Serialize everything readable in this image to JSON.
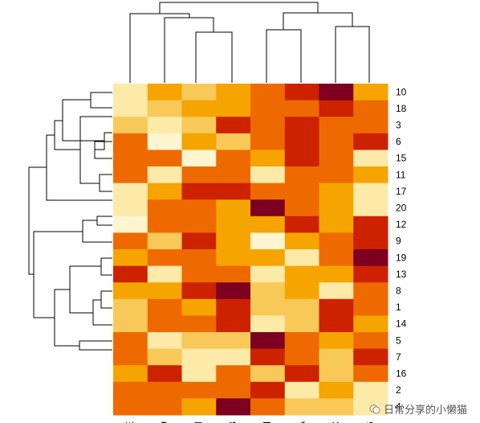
{
  "chart_data": {
    "type": "heatmap",
    "rows": [
      "10",
      "18",
      "3",
      "6",
      "15",
      "11",
      "17",
      "20",
      "12",
      "9",
      "19",
      "13",
      "8",
      "1",
      "14",
      "5",
      "7",
      "16",
      "2",
      "4"
    ],
    "columns": [
      "E",
      "D",
      "I",
      "B",
      "H",
      "A",
      "C",
      "G"
    ],
    "values": [
      [
        1,
        3,
        2,
        3,
        4,
        5,
        6,
        3
      ],
      [
        1,
        2,
        3,
        3,
        4,
        4,
        5,
        4
      ],
      [
        2,
        1,
        2,
        5,
        4,
        5,
        4,
        4
      ],
      [
        4,
        0,
        3,
        2,
        4,
        5,
        4,
        5
      ],
      [
        4,
        4,
        0,
        4,
        3,
        5,
        4,
        1
      ],
      [
        4,
        1,
        4,
        4,
        1,
        4,
        4,
        3
      ],
      [
        1,
        3,
        5,
        5,
        4,
        4,
        3,
        1
      ],
      [
        1,
        4,
        4,
        3,
        6,
        4,
        3,
        1
      ],
      [
        0,
        4,
        4,
        3,
        3,
        5,
        3,
        5
      ],
      [
        4,
        2,
        5,
        3,
        0,
        3,
        4,
        5
      ],
      [
        3,
        4,
        4,
        3,
        3,
        1,
        4,
        6
      ],
      [
        5,
        1,
        4,
        4,
        1,
        3,
        3,
        5
      ],
      [
        3,
        3,
        5,
        6,
        2,
        3,
        1,
        4
      ],
      [
        2,
        4,
        3,
        5,
        2,
        2,
        5,
        4
      ],
      [
        2,
        4,
        4,
        5,
        1,
        2,
        5,
        3
      ],
      [
        4,
        1,
        2,
        2,
        6,
        4,
        3,
        4
      ],
      [
        4,
        2,
        1,
        1,
        5,
        4,
        2,
        5
      ],
      [
        3,
        5,
        1,
        4,
        2,
        5,
        2,
        4
      ],
      [
        4,
        4,
        4,
        4,
        5,
        1,
        3,
        1
      ],
      [
        4,
        4,
        3,
        6,
        4,
        2,
        2,
        1
      ]
    ],
    "colorscale": [
      "#fff5d0",
      "#fde9a8",
      "#f8c858",
      "#f5a400",
      "#ee6a00",
      "#cc2200",
      "#7d0020"
    ],
    "grid": false,
    "legend": "none",
    "row_dendrogram": "left",
    "col_dendrogram": "top"
  },
  "watermark": {
    "text": "日常分享的小懒猫"
  }
}
